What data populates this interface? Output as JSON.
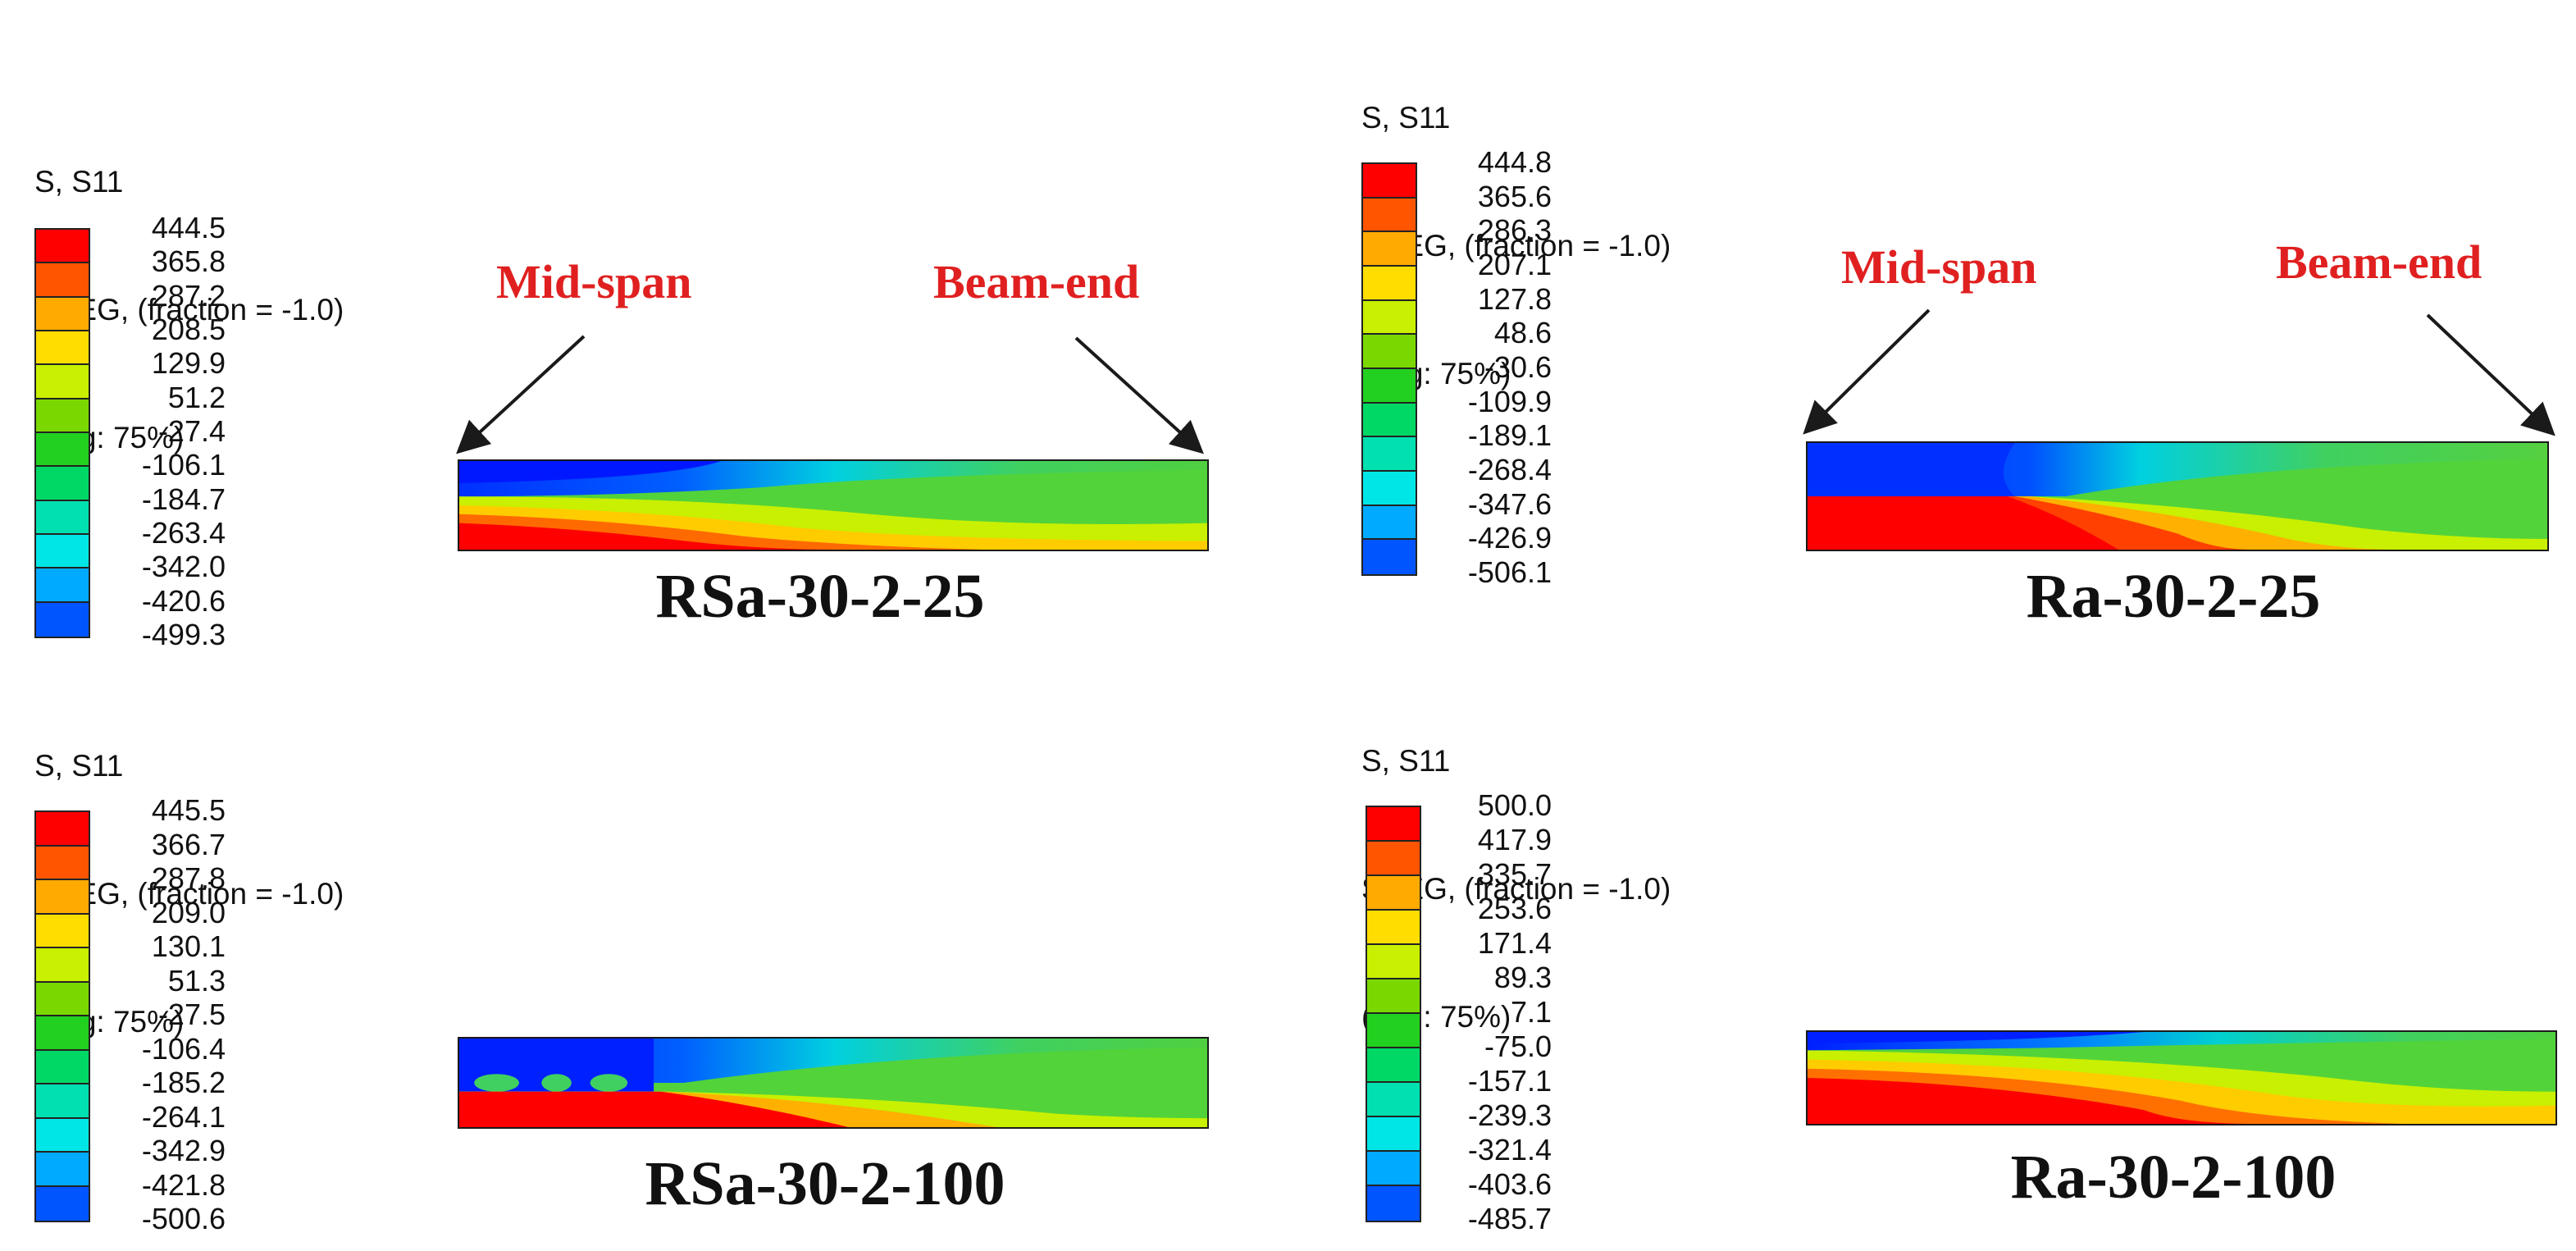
{
  "legend_palette": [
    "#ff0000",
    "#ff5500",
    "#ffaa00",
    "#ffdd00",
    "#c9f000",
    "#7ad800",
    "#22d020",
    "#00d866",
    "#00e0b0",
    "#00e6e6",
    "#00aaff",
    "#0055ff",
    "#0000ff"
  ],
  "annotations": {
    "mid_span": "Mid-span",
    "beam_end": "Beam-end"
  },
  "panels": [
    {
      "id": "RSa-30-2-25",
      "header": [
        "S, S11",
        "SNEG, (fraction = -1.0)",
        "(Avg: 75%)"
      ],
      "ticks": [
        "444.5",
        "365.8",
        "287.2",
        "208.5",
        "129.9",
        "51.2",
        "-27.4",
        "-106.1",
        "-184.7",
        "-263.4",
        "-342.0",
        "-420.6",
        "-499.3"
      ],
      "label": "RSa-30-2-25"
    },
    {
      "id": "Ra-30-2-25",
      "header": [
        "S, S11",
        "SNEG, (fraction = -1.0)",
        "(Avg: 75%)"
      ],
      "ticks": [
        "444.8",
        "365.6",
        "286.3",
        "207.1",
        "127.8",
        "48.6",
        "-30.6",
        "-109.9",
        "-189.1",
        "-268.4",
        "-347.6",
        "-426.9",
        "-506.1"
      ],
      "label": "Ra-30-2-25"
    },
    {
      "id": "RSa-30-2-100",
      "header": [
        "S, S11",
        "SNEG, (fraction = -1.0)",
        "(Avg: 75%)"
      ],
      "ticks": [
        "445.5",
        "366.7",
        "287.8",
        "209.0",
        "130.1",
        "51.3",
        "-27.5",
        "-106.4",
        "-185.2",
        "-264.1",
        "-342.9",
        "-421.8",
        "-500.6"
      ],
      "label": "RSa-30-2-100"
    },
    {
      "id": "Ra-30-2-100",
      "header": [
        "S, S11",
        "SNEG, (fraction = -1.0)",
        "(Avg: 75%)"
      ],
      "ticks": [
        "500.0",
        "417.9",
        "335.7",
        "253.6",
        "171.4",
        "89.3",
        "7.1",
        "-75.0",
        "-157.1",
        "-239.3",
        "-321.4",
        "-403.6",
        "-485.7"
      ],
      "label": "Ra-30-2-100"
    }
  ]
}
